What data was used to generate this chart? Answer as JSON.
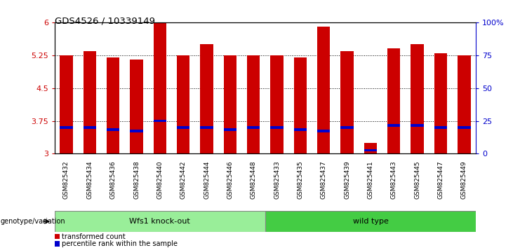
{
  "title": "GDS4526 / 10339149",
  "samples": [
    "GSM825432",
    "GSM825434",
    "GSM825436",
    "GSM825438",
    "GSM825440",
    "GSM825442",
    "GSM825444",
    "GSM825446",
    "GSM825448",
    "GSM825433",
    "GSM825435",
    "GSM825437",
    "GSM825439",
    "GSM825441",
    "GSM825443",
    "GSM825445",
    "GSM825447",
    "GSM825449"
  ],
  "bar_tops": [
    5.25,
    5.35,
    5.2,
    5.15,
    6.0,
    5.25,
    5.5,
    5.25,
    5.25,
    5.25,
    5.2,
    5.9,
    5.35,
    3.25,
    5.4,
    5.5,
    5.3,
    5.25
  ],
  "blue_vals": [
    3.6,
    3.6,
    3.55,
    3.52,
    3.75,
    3.6,
    3.6,
    3.55,
    3.6,
    3.6,
    3.55,
    3.52,
    3.6,
    3.08,
    3.65,
    3.65,
    3.6,
    3.6
  ],
  "ymin": 3.0,
  "ymax": 6.0,
  "yticks": [
    3.0,
    3.75,
    4.5,
    5.25,
    6.0
  ],
  "ytick_labels": [
    "3",
    "3.75",
    "4.5",
    "5.25",
    "6"
  ],
  "right_yticks": [
    0,
    25,
    50,
    75,
    100
  ],
  "right_ytick_labels": [
    "0",
    "25",
    "50",
    "75",
    "100%"
  ],
  "bar_color": "#CC0000",
  "blue_color": "#0000CC",
  "group1_label": "Wfs1 knock-out",
  "group2_label": "wild type",
  "group1_color": "#99EE99",
  "group2_color": "#44CC44",
  "group1_count": 9,
  "group2_count": 9,
  "legend_red": "transformed count",
  "legend_blue": "percentile rank within the sample",
  "bar_width": 0.55,
  "background_color": "#FFFFFF",
  "plot_bg": "#FFFFFF",
  "genotype_label": "genotype/variation"
}
